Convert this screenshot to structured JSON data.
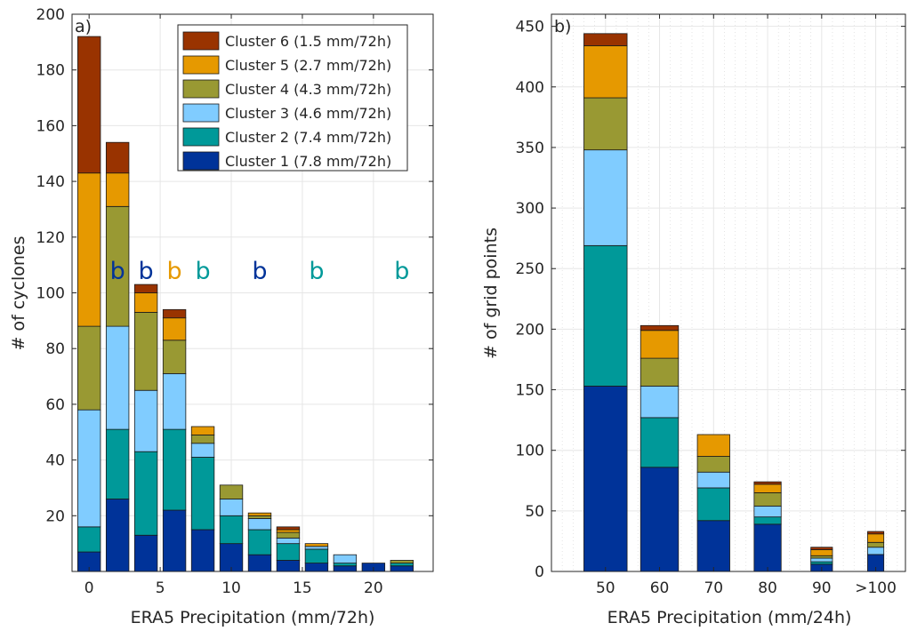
{
  "colors": {
    "cluster1": "#003399",
    "cluster2": "#009999",
    "cluster3": "#80ccff",
    "cluster4": "#999933",
    "cluster5": "#e69900",
    "cluster6": "#993300"
  },
  "chart_data": [
    {
      "type": "bar",
      "stacked": true,
      "panel_label": "a)",
      "xlabel": "ERA5 Precipitation (mm/72h)",
      "ylabel": "# of cyclones",
      "xlim": [
        -1.2,
        24.2
      ],
      "ylim": [
        0,
        200
      ],
      "xticks": [
        0,
        5,
        10,
        15,
        20
      ],
      "xtick_labels": [
        "0",
        "5",
        "10",
        "15",
        "20"
      ],
      "yticks": [
        20,
        40,
        60,
        80,
        100,
        120,
        140,
        160,
        180,
        200
      ],
      "ytick_labels": [
        "20",
        "40",
        "60",
        "80",
        "100",
        "120",
        "140",
        "160",
        "180",
        "200"
      ],
      "grid": true,
      "legend_position": "top-right",
      "x": [
        0,
        2,
        4,
        6,
        8,
        10,
        12,
        14,
        16,
        18,
        20,
        22
      ],
      "series": [
        {
          "name": "Cluster 1 (7.8 mm/72h)",
          "color_key": "cluster1",
          "values": [
            7,
            26,
            13,
            22,
            15,
            10,
            6,
            4,
            3,
            2,
            3,
            2
          ]
        },
        {
          "name": "Cluster 2 (7.4 mm/72h)",
          "color_key": "cluster2",
          "values": [
            9,
            25,
            30,
            29,
            26,
            10,
            9,
            6,
            5,
            1,
            0,
            1
          ]
        },
        {
          "name": "Cluster 3 (4.6 mm/72h)",
          "color_key": "cluster3",
          "values": [
            42,
            37,
            22,
            20,
            5,
            6,
            4,
            2,
            1,
            3,
            0,
            0
          ]
        },
        {
          "name": "Cluster 4 (4.3 mm/72h)",
          "color_key": "cluster4",
          "values": [
            30,
            43,
            28,
            12,
            3,
            5,
            1,
            2,
            0,
            0,
            0,
            1
          ]
        },
        {
          "name": "Cluster 5 (2.7 mm/72h)",
          "color_key": "cluster5",
          "values": [
            55,
            12,
            7,
            8,
            3,
            0,
            1,
            1,
            1,
            0,
            0,
            0
          ]
        },
        {
          "name": "Cluster 6 (1.5 mm/72h)",
          "color_key": "cluster6",
          "values": [
            49,
            11,
            3,
            3,
            0,
            0,
            0,
            1,
            0,
            0,
            0,
            0
          ]
        }
      ],
      "annotations": [
        {
          "text": "b",
          "x": 2,
          "y": 105,
          "color_key": "cluster1"
        },
        {
          "text": "b",
          "x": 4,
          "y": 105,
          "color_key": "cluster1"
        },
        {
          "text": "b",
          "x": 6,
          "y": 105,
          "color_key": "cluster5"
        },
        {
          "text": "b",
          "x": 8,
          "y": 105,
          "color_key": "cluster2"
        },
        {
          "text": "b",
          "x": 12,
          "y": 105,
          "color_key": "cluster1"
        },
        {
          "text": "b",
          "x": 16,
          "y": 105,
          "color_key": "cluster2"
        },
        {
          "text": "b",
          "x": 22,
          "y": 105,
          "color_key": "cluster2"
        }
      ]
    },
    {
      "type": "bar",
      "stacked": true,
      "panel_label": "b)",
      "xlabel": "ERA5 Precipitation (mm/24h)",
      "ylabel": "# of grid points",
      "xlim": [
        40,
        105.5
      ],
      "ylim": [
        0,
        460
      ],
      "xticks": [
        50,
        60,
        70,
        80,
        90,
        100
      ],
      "xtick_labels": [
        "50",
        "60",
        "70",
        "80",
        "90",
        ">100"
      ],
      "yticks": [
        0,
        50,
        100,
        150,
        200,
        250,
        300,
        350,
        400,
        450
      ],
      "ytick_labels": [
        "0",
        "50",
        "100",
        "150",
        "200",
        "250",
        "300",
        "350",
        "400",
        "450"
      ],
      "grid": true,
      "categories": [
        "50",
        "60",
        "70",
        "80",
        "90",
        ">100"
      ],
      "x": [
        50,
        60,
        70,
        80,
        90,
        100
      ],
      "bar_widths": [
        8,
        7,
        6,
        5,
        4,
        3
      ],
      "series": [
        {
          "name": "Cluster 1",
          "color_key": "cluster1",
          "values": [
            153,
            86,
            42,
            39,
            6,
            14
          ]
        },
        {
          "name": "Cluster 2",
          "color_key": "cluster2",
          "values": [
            116,
            41,
            27,
            6,
            2,
            0
          ]
        },
        {
          "name": "Cluster 3",
          "color_key": "cluster3",
          "values": [
            79,
            26,
            13,
            9,
            3,
            6
          ]
        },
        {
          "name": "Cluster 4",
          "color_key": "cluster4",
          "values": [
            43,
            23,
            13,
            11,
            2,
            4
          ]
        },
        {
          "name": "Cluster 5",
          "color_key": "cluster5",
          "values": [
            43,
            23,
            18,
            7,
            5,
            7
          ]
        },
        {
          "name": "Cluster 6",
          "color_key": "cluster6",
          "values": [
            10,
            4,
            0,
            2,
            2,
            2
          ]
        }
      ]
    }
  ]
}
